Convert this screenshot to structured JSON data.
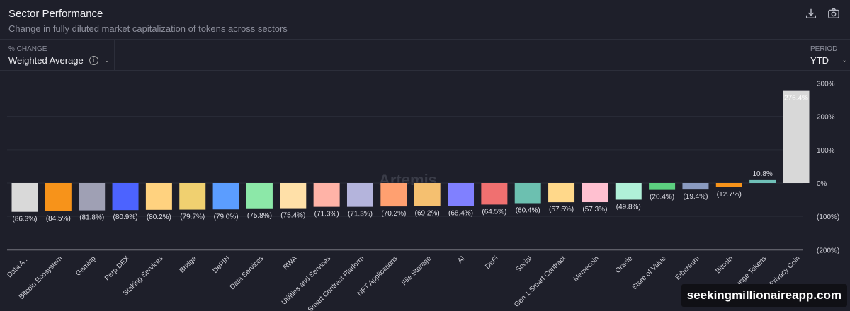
{
  "header": {
    "title": "Sector Performance",
    "subtitle": "Change in fully diluted market capitalization of tokens across sectors",
    "download_icon": "download-icon",
    "screenshot_icon": "camera-icon"
  },
  "controls": {
    "change_label": "% CHANGE",
    "change_value": "Weighted Average",
    "period_label": "PERIOD",
    "period_value": "YTD"
  },
  "watermark_chart": "Artemis",
  "watermark": "seekingmillionaireapp.com",
  "chart_data": {
    "type": "bar",
    "ylim": [
      -200,
      300
    ],
    "yticks": [
      300,
      200,
      100,
      0,
      -100,
      -200
    ],
    "ytick_labels": [
      "300%",
      "200%",
      "100%",
      "0%",
      "(100%)",
      "(200%)"
    ],
    "grid": true,
    "categories": [
      "Data A...",
      "Bitcoin Ecosystem",
      "Gaming",
      "Perp DEX",
      "Staking Services",
      "Bridge",
      "DePIN",
      "Data Services",
      "RWA",
      "Utilities and Services",
      "Smart Contract Platform",
      "NFT Applications",
      "File Storage",
      "AI",
      "DeFi",
      "Social",
      "Gen 1 Smart Contract",
      "Memecoin",
      "Oracle",
      "Store of Value",
      "Ethereum",
      "Bitcoin",
      "Exchange Tokens",
      "Privacy Coin"
    ],
    "values": [
      -86.3,
      -84.5,
      -81.8,
      -80.9,
      -80.2,
      -79.7,
      -79.0,
      -75.8,
      -75.4,
      -71.3,
      -71.3,
      -70.2,
      -69.2,
      -68.4,
      -64.5,
      -60.4,
      -57.5,
      -57.3,
      -49.8,
      -20.4,
      -19.4,
      -12.7,
      10.8,
      276.4
    ],
    "data_labels": [
      "(86.3%)",
      "(84.5%)",
      "(81.8%)",
      "(80.9%)",
      "(80.2%)",
      "(79.7%)",
      "(79.0%)",
      "(75.8%)",
      "(75.4%)",
      "(71.3%)",
      "(71.3%)",
      "(70.2%)",
      "(69.2%)",
      "(68.4%)",
      "(64.5%)",
      "(60.4%)",
      "(57.5%)",
      "(57.3%)",
      "(49.8%)",
      "(20.4%)",
      "(19.4%)",
      "(12.7%)",
      "10.8%",
      "276.4%"
    ],
    "colors": [
      "#d9d9d9",
      "#f7931a",
      "#9fa0b4",
      "#4c63ff",
      "#ffd27f",
      "#f0d070",
      "#5b9dff",
      "#8ce8a8",
      "#ffe0a8",
      "#ffb3a7",
      "#b4b4dc",
      "#ffa070",
      "#f5c070",
      "#8080ff",
      "#f07070",
      "#6cc0b0",
      "#ffd88a",
      "#ffc0d0",
      "#b0f0d8",
      "#5cd080",
      "#8a9ac0",
      "#f7931a",
      "#70c0b8",
      "#d8d8d8"
    ]
  }
}
